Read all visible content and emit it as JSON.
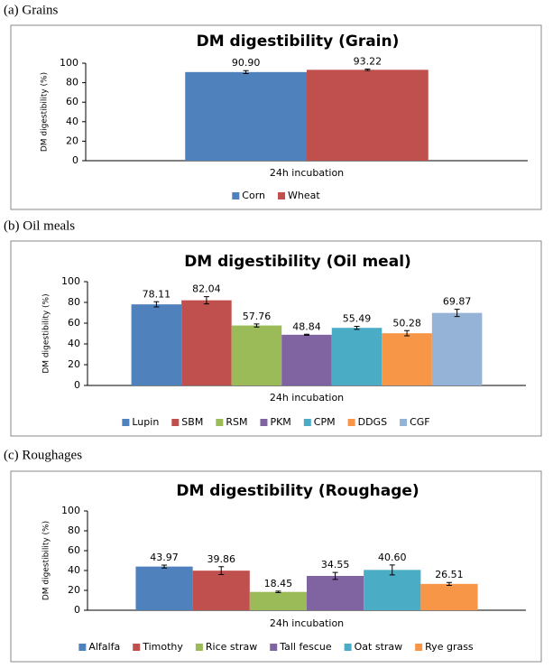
{
  "chart_data": [
    {
      "type": "bar",
      "label": "(a) Grains",
      "title": "DM digestibility (Grain)",
      "y_label": "DM digestibility (%)",
      "categories": [
        "24h incubation"
      ],
      "ylim": [
        0,
        100
      ],
      "yticks": [
        0,
        20,
        40,
        60,
        80,
        100
      ],
      "series": [
        {
          "name": "Corn",
          "color": "#4f81bd",
          "values": [
            90.9
          ],
          "value_labels": [
            "90.90"
          ],
          "errors": [
            1.5
          ]
        },
        {
          "name": "Wheat",
          "color": "#c0504d",
          "values": [
            93.22
          ],
          "errors": [
            0.8
          ]
        }
      ]
    },
    {
      "type": "bar",
      "label": "(b) Oil meals",
      "title": "DM digestibility (Oil meal)",
      "y_label": "DM digestibility (%)",
      "categories": [
        "24h incubation"
      ],
      "ylim": [
        0,
        100
      ],
      "yticks": [
        0,
        20,
        40,
        60,
        80,
        100
      ],
      "series": [
        {
          "name": "Lupin",
          "color": "#4f81bd",
          "values": [
            78.11
          ],
          "errors": [
            2.5
          ]
        },
        {
          "name": "SBM",
          "color": "#c0504d",
          "values": [
            82.04
          ],
          "errors": [
            3.5
          ]
        },
        {
          "name": "RSM",
          "color": "#9bbb59",
          "values": [
            57.76
          ],
          "errors": [
            1.5
          ]
        },
        {
          "name": "PKM",
          "color": "#8064a2",
          "values": [
            48.84
          ],
          "errors": [
            0.5
          ]
        },
        {
          "name": "CPM",
          "color": "#4bacc6",
          "values": [
            55.49
          ],
          "errors": [
            1.5
          ]
        },
        {
          "name": "DDGS",
          "color": "#f79646",
          "values": [
            50.28
          ],
          "errors": [
            2.5
          ]
        },
        {
          "name": "CGF",
          "color": "#95b3d7",
          "values": [
            69.87
          ],
          "errors": [
            3.5
          ]
        }
      ]
    },
    {
      "type": "bar",
      "label": "(c) Roughages",
      "title": "DM digestibility (Roughage)",
      "y_label": "DM digestibility (%)",
      "categories": [
        "24h incubation"
      ],
      "ylim": [
        0,
        100
      ],
      "yticks": [
        0,
        20,
        40,
        60,
        80,
        100
      ],
      "series": [
        {
          "name": "Alfalfa",
          "color": "#4f81bd",
          "values": [
            43.97
          ],
          "errors": [
            1.5
          ]
        },
        {
          "name": "Timothy",
          "color": "#c0504d",
          "values": [
            39.86
          ],
          "errors": [
            4
          ]
        },
        {
          "name": "Rice straw",
          "color": "#9bbb59",
          "values": [
            18.45
          ],
          "errors": [
            0.7
          ]
        },
        {
          "name": "Tall fescue",
          "color": "#8064a2",
          "values": [
            34.55
          ],
          "errors": [
            3.5
          ]
        },
        {
          "name": "Oat straw",
          "color": "#4bacc6",
          "values": [
            40.6
          ],
          "value_labels": [
            "40.60"
          ],
          "errors": [
            5
          ]
        },
        {
          "name": "Rye grass",
          "color": "#f79646",
          "values": [
            26.51
          ],
          "errors": [
            1.5
          ]
        }
      ]
    }
  ]
}
